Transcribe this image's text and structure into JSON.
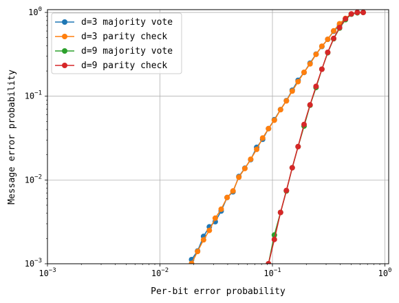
{
  "chart_data": {
    "type": "line",
    "xscale": "log",
    "yscale": "log",
    "xlabel": "Per-bit error probability",
    "ylabel": "Message error probability",
    "xlim": [
      0.001,
      1.08
    ],
    "ylim": [
      0.001,
      1.08
    ],
    "grid": true,
    "legend_position": "upper-left",
    "x_ticks": [
      {
        "value": 0.001,
        "base": "10",
        "exp": "−3"
      },
      {
        "value": 0.01,
        "base": "10",
        "exp": "−2"
      },
      {
        "value": 0.1,
        "base": "10",
        "exp": "−1"
      },
      {
        "value": 1,
        "base": "10",
        "exp": "0"
      }
    ],
    "y_ticks": [
      {
        "value": 0.001,
        "base": "10",
        "exp": "−3"
      },
      {
        "value": 0.01,
        "base": "10",
        "exp": "−2"
      },
      {
        "value": 0.1,
        "base": "10",
        "exp": "−1"
      },
      {
        "value": 1,
        "base": "10",
        "exp": "0"
      }
    ],
    "series": [
      {
        "name": "d=3 majority vote",
        "color": "#1f77b4",
        "points": [
          [
            0.0191,
            0.00112
          ],
          [
            0.0216,
            0.00142
          ],
          [
            0.0244,
            0.00212
          ],
          [
            0.0275,
            0.00276
          ],
          [
            0.031,
            0.00318
          ],
          [
            0.035,
            0.00426
          ],
          [
            0.0395,
            0.00618
          ],
          [
            0.0446,
            0.00723
          ],
          [
            0.0503,
            0.011
          ],
          [
            0.0568,
            0.0138
          ],
          [
            0.0641,
            0.0175
          ],
          [
            0.0724,
            0.0245
          ],
          [
            0.0818,
            0.0306
          ],
          [
            0.0923,
            0.041
          ],
          [
            0.104,
            0.0526
          ],
          [
            0.118,
            0.0693
          ],
          [
            0.133,
            0.0886
          ],
          [
            0.15,
            0.118
          ],
          [
            0.169,
            0.155
          ],
          [
            0.191,
            0.192
          ],
          [
            0.216,
            0.248
          ],
          [
            0.244,
            0.318
          ],
          [
            0.275,
            0.392
          ],
          [
            0.31,
            0.478
          ],
          [
            0.35,
            0.596
          ],
          [
            0.395,
            0.706
          ],
          [
            0.446,
            0.842
          ],
          [
            0.503,
            0.955
          ],
          [
            0.568,
            1.0
          ]
        ]
      },
      {
        "name": "d=3 parity check",
        "color": "#ff7f0e",
        "points": [
          [
            0.0191,
            0.00101
          ],
          [
            0.0216,
            0.0014
          ],
          [
            0.0244,
            0.00193
          ],
          [
            0.0275,
            0.0025
          ],
          [
            0.031,
            0.0035
          ],
          [
            0.035,
            0.00448
          ],
          [
            0.0395,
            0.00618
          ],
          [
            0.0446,
            0.0074
          ],
          [
            0.0503,
            0.0108
          ],
          [
            0.0568,
            0.0137
          ],
          [
            0.0641,
            0.0177
          ],
          [
            0.0724,
            0.0232
          ],
          [
            0.0818,
            0.0317
          ],
          [
            0.0923,
            0.041
          ],
          [
            0.104,
            0.0517
          ],
          [
            0.118,
            0.069
          ],
          [
            0.133,
            0.088
          ],
          [
            0.15,
            0.115
          ],
          [
            0.169,
            0.149
          ],
          [
            0.191,
            0.193
          ],
          [
            0.216,
            0.243
          ],
          [
            0.244,
            0.316
          ],
          [
            0.275,
            0.395
          ],
          [
            0.31,
            0.478
          ],
          [
            0.35,
            0.603
          ],
          [
            0.395,
            0.732
          ],
          [
            0.446,
            0.849
          ],
          [
            0.503,
            0.958
          ],
          [
            0.568,
            1.0
          ]
        ]
      },
      {
        "name": "d=9 majority vote",
        "color": "#2ca02c",
        "points": [
          [
            0.0923,
            0.001
          ],
          [
            0.104,
            0.0022
          ],
          [
            0.118,
            0.0041
          ],
          [
            0.133,
            0.0074
          ],
          [
            0.15,
            0.014
          ],
          [
            0.169,
            0.025
          ],
          [
            0.191,
            0.044
          ],
          [
            0.216,
            0.078
          ],
          [
            0.244,
            0.127
          ],
          [
            0.275,
            0.21
          ],
          [
            0.31,
            0.33
          ],
          [
            0.35,
            0.485
          ],
          [
            0.395,
            0.65
          ],
          [
            0.446,
            0.82
          ],
          [
            0.503,
            0.955
          ],
          [
            0.568,
            0.99
          ],
          [
            0.641,
            1.0
          ]
        ]
      },
      {
        "name": "d=9 parity check",
        "color": "#d62728",
        "points": [
          [
            0.0923,
            0.001
          ],
          [
            0.104,
            0.00195
          ],
          [
            0.118,
            0.0041
          ],
          [
            0.133,
            0.0075
          ],
          [
            0.15,
            0.014
          ],
          [
            0.169,
            0.025
          ],
          [
            0.191,
            0.046
          ],
          [
            0.216,
            0.079
          ],
          [
            0.244,
            0.131
          ],
          [
            0.275,
            0.21
          ],
          [
            0.31,
            0.334
          ],
          [
            0.35,
            0.49
          ],
          [
            0.395,
            0.66
          ],
          [
            0.446,
            0.84
          ],
          [
            0.503,
            0.96
          ],
          [
            0.568,
            1.0
          ],
          [
            0.641,
            1.0
          ]
        ]
      }
    ]
  }
}
